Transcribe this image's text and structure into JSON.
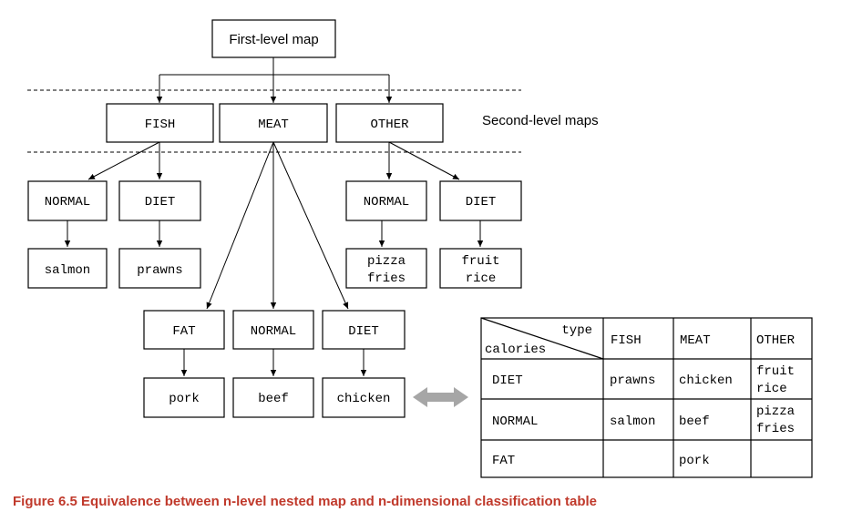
{
  "root": {
    "label": "First-level map"
  },
  "second_level_label": "Second-level maps",
  "second_level": {
    "fish": "FISH",
    "meat": "MEAT",
    "other": "OTHER"
  },
  "third_level": {
    "fish_normal": "NORMAL",
    "fish_diet": "DIET",
    "other_normal": "NORMAL",
    "other_diet": "DIET",
    "meat_fat": "FAT",
    "meat_normal": "NORMAL",
    "meat_diet": "DIET"
  },
  "leaves": {
    "salmon": "salmon",
    "prawns": "prawns",
    "pizza_fries": [
      "pizza",
      "fries"
    ],
    "fruit_rice": [
      "fruit",
      "rice"
    ],
    "pork": "pork",
    "beef": "beef",
    "chicken": "chicken"
  },
  "table": {
    "corner_top": "type",
    "corner_bottom": "calories",
    "columns": [
      "FISH",
      "MEAT",
      "OTHER"
    ],
    "rows": [
      {
        "label": "DIET",
        "cells": [
          [
            "prawns"
          ],
          [
            "chicken"
          ],
          [
            "fruit",
            "rice"
          ]
        ]
      },
      {
        "label": "NORMAL",
        "cells": [
          [
            "salmon"
          ],
          [
            "beef"
          ],
          [
            "pizza",
            "fries"
          ]
        ]
      },
      {
        "label": "FAT",
        "cells": [
          [],
          [
            "pork"
          ],
          []
        ]
      }
    ]
  },
  "caption": "Figure 6.5    Equivalence between n-level nested map and n-dimensional classification table",
  "colors": {
    "caption": "#c0392b",
    "double_arrow": "#a6a6a6"
  }
}
